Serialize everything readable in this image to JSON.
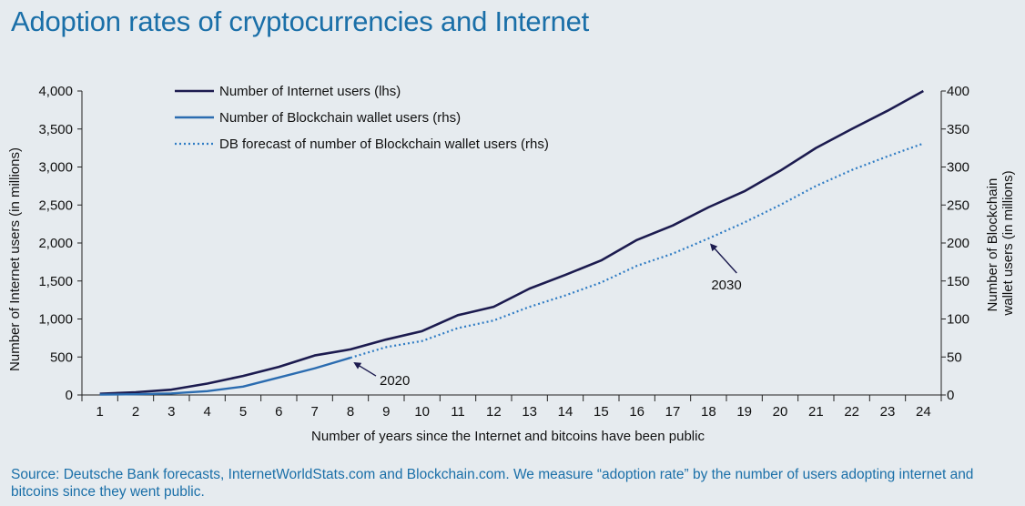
{
  "title": "Adoption rates of cryptocurrencies and Internet",
  "source": "Source: Deutsche Bank forecasts, InternetWorldStats.com and Blockchain.com. We measure “adoption rate” by the number of users adopting internet and bitcoins since they went public.",
  "chart_data": {
    "type": "line",
    "xlabel": "Number of years since the Internet and bitcoins have been public",
    "ylabel_left": "Number of Internet users (in millions)",
    "ylabel_right_lines": [
      "Number of Blockchain",
      "wallet users (in millions)"
    ],
    "x": [
      1,
      2,
      3,
      4,
      5,
      6,
      7,
      8,
      9,
      10,
      11,
      12,
      13,
      14,
      15,
      16,
      17,
      18,
      19,
      20,
      21,
      22,
      23,
      24
    ],
    "xlim": [
      0.5,
      24.5
    ],
    "ylim_left": [
      0,
      4000
    ],
    "ylim_right": [
      0,
      400
    ],
    "yticks_left": [
      "0",
      "500",
      "1,000",
      "1,500",
      "2,000",
      "2,500",
      "3,000",
      "3,500",
      "4,000"
    ],
    "yticks_left_values": [
      0,
      500,
      1000,
      1500,
      2000,
      2500,
      3000,
      3500,
      4000
    ],
    "yticks_right": [
      "0",
      "50",
      "100",
      "150",
      "200",
      "250",
      "300",
      "350",
      "400"
    ],
    "yticks_right_values": [
      0,
      50,
      100,
      150,
      200,
      250,
      300,
      350,
      400
    ],
    "grid": false,
    "legend_position": "top-left",
    "colors": {
      "internet": "#1c1b4f",
      "blockchain": "#2b6cb0",
      "forecast": "#2f7cc4",
      "axis": "#222222",
      "annotation": "#1c1b4f"
    },
    "series": [
      {
        "name": "Number of Internet users (lhs)",
        "axis": "left",
        "style": "solid",
        "x": [
          1,
          2,
          3,
          4,
          5,
          6,
          7,
          8,
          9,
          10,
          11,
          12,
          13,
          14,
          15,
          16,
          17,
          18,
          19,
          20,
          21,
          22,
          23,
          24
        ],
        "values": [
          16,
          36,
          70,
          150,
          250,
          370,
          520,
          600,
          730,
          840,
          1050,
          1160,
          1400,
          1580,
          1770,
          2040,
          2230,
          2470,
          2680,
          2950,
          3250,
          3500,
          3740,
          4000
        ]
      },
      {
        "name": "Number of Blockchain wallet users (rhs)",
        "axis": "right",
        "style": "solid",
        "x": [
          1,
          2,
          3,
          4,
          5,
          6,
          7,
          8
        ],
        "values": [
          0.5,
          1,
          2,
          5,
          11,
          23,
          35,
          49
        ]
      },
      {
        "name": "DB forecast of number of Blockchain wallet users (rhs)",
        "axis": "right",
        "style": "dotted",
        "x": [
          8,
          9,
          10,
          11,
          12,
          13,
          14,
          15,
          16,
          17,
          18,
          19,
          20,
          21,
          22,
          23,
          24
        ],
        "values": [
          49,
          63,
          71,
          88,
          98,
          116,
          131,
          148,
          170,
          186,
          206,
          227,
          250,
          275,
          296,
          314,
          331
        ]
      }
    ],
    "annotations": [
      {
        "text": "2020",
        "x": 8,
        "y": 49,
        "axis": "right"
      },
      {
        "text": "2030",
        "x": 18,
        "y": 206,
        "axis": "right"
      }
    ]
  }
}
